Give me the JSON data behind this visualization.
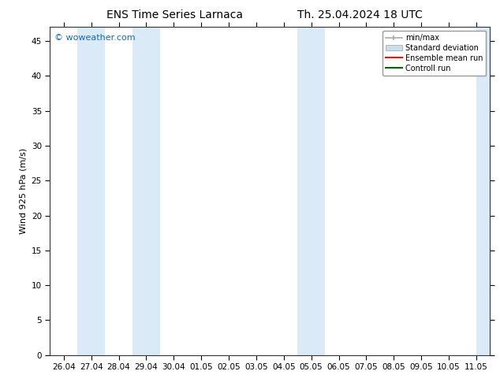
{
  "title_left": "ENS Time Series Larnaca",
  "title_right": "Th. 25.04.2024 18 UTC",
  "ylabel": "Wind 925 hPa (m/s)",
  "watermark": "© woweather.com",
  "watermark_color": "#1166cc",
  "ylim": [
    0,
    47
  ],
  "yticks": [
    0,
    5,
    10,
    15,
    20,
    25,
    30,
    35,
    40,
    45
  ],
  "bg_color": "#ffffff",
  "plot_bg_color": "#ffffff",
  "band_color": "#daeaf7",
  "x_tick_labels": [
    "26.04",
    "27.04",
    "28.04",
    "29.04",
    "30.04",
    "01.05",
    "02.05",
    "03.05",
    "04.05",
    "05.05",
    "06.05",
    "07.05",
    "08.05",
    "09.05",
    "10.05",
    "11.05"
  ],
  "x_tick_positions": [
    0,
    1,
    2,
    3,
    4,
    5,
    6,
    7,
    8,
    9,
    10,
    11,
    12,
    13,
    14,
    15
  ],
  "shaded_bands": [
    [
      0.5,
      1.5
    ],
    [
      2.5,
      3.5
    ],
    [
      8.5,
      9.5
    ],
    [
      15.0,
      15.5
    ]
  ],
  "legend_labels": [
    "min/max",
    "Standard deviation",
    "Ensemble mean run",
    "Controll run"
  ],
  "legend_colors": [
    "#aaaaaa",
    "#c8dff0",
    "#ff0000",
    "#006600"
  ],
  "title_fontsize": 10,
  "axis_label_fontsize": 8,
  "tick_fontsize": 7.5
}
